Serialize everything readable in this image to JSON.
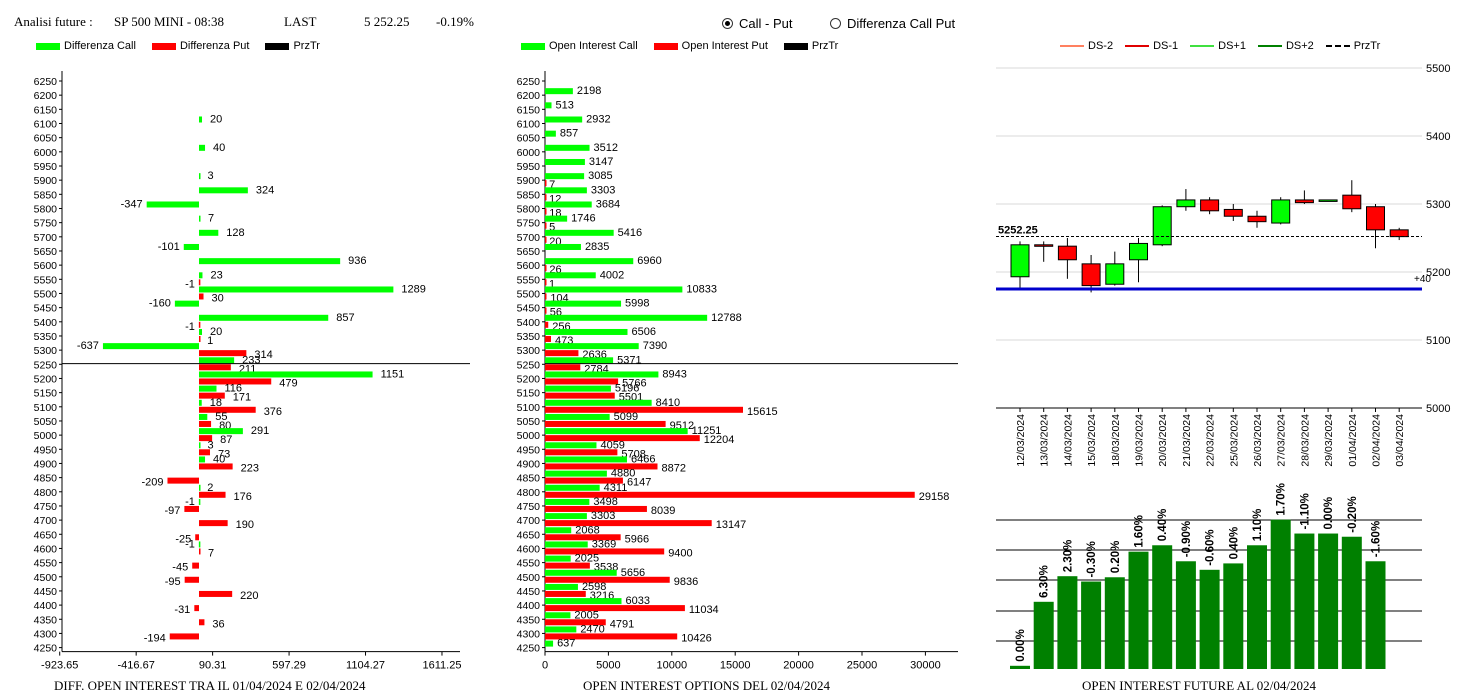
{
  "header": {
    "analysis_label": "Analisi future :",
    "instrument": "SP 500 MINI - 08:38",
    "last_label": "LAST",
    "last_value": "5 252.25",
    "change": "-0.19%"
  },
  "radios": [
    {
      "label": "Call - Put",
      "selected": true
    },
    {
      "label": "Differenza Call Put",
      "selected": false
    }
  ],
  "colors": {
    "green": "#00ff00",
    "red": "#ff0000",
    "dark_green": "#008000",
    "blue": "#0000cc",
    "black": "#000000"
  },
  "captions": {
    "left": "DIFF. OPEN INTEREST TRA IL 01/04/2024 E 02/04/2024",
    "middle": "OPEN INTEREST OPTIONS DEL 02/04/2024",
    "right": "OPEN INTEREST FUTURE AL 02/04/2024"
  },
  "chart_data": [
    {
      "type": "bar",
      "orientation": "horizontal",
      "legend": [
        "Differenza Call",
        "Differenza Put",
        "PrzTr"
      ],
      "legend_placement": "top",
      "categories": [
        6250,
        6200,
        6150,
        6100,
        6050,
        6000,
        5950,
        5900,
        5850,
        5800,
        5750,
        5700,
        5650,
        5600,
        5550,
        5500,
        5450,
        5400,
        5350,
        5300,
        5250,
        5200,
        5150,
        5100,
        5050,
        5000,
        4950,
        4900,
        4850,
        4800,
        4750,
        4700,
        4650,
        4600,
        4550,
        4500,
        4450,
        4400,
        4350,
        4300,
        4250
      ],
      "series": [
        {
          "name": "Differenza Call",
          "values": [
            null,
            null,
            null,
            20,
            null,
            40,
            null,
            3,
            324,
            -347,
            7,
            128,
            -101,
            936,
            23,
            1289,
            -160,
            857,
            20,
            -637,
            233,
            1151,
            116,
            18,
            55,
            291,
            3,
            40,
            null,
            2,
            -1,
            null,
            null,
            -1,
            null,
            null,
            null,
            null,
            null,
            null,
            null
          ]
        },
        {
          "name": "Differenza Put",
          "values": [
            null,
            null,
            null,
            null,
            null,
            null,
            null,
            null,
            null,
            null,
            null,
            null,
            null,
            null,
            -1,
            30,
            null,
            -1,
            1,
            314,
            211,
            479,
            171,
            376,
            80,
            87,
            73,
            223,
            -209,
            176,
            -97,
            190,
            -25,
            7,
            -45,
            -95,
            220,
            -31,
            36,
            -194,
            null
          ]
        }
      ],
      "prztr_level": 5252.25,
      "xticks": [
        "-923.65",
        "-416.67",
        "90.31",
        "597.29",
        "1104.27",
        "1611.25"
      ],
      "xlim": [
        -923.65,
        1611.25
      ]
    },
    {
      "type": "bar",
      "orientation": "horizontal",
      "legend": [
        "Open Interest Call",
        "Open Interest Put",
        "PrzTr"
      ],
      "legend_placement": "top",
      "categories": [
        6250,
        6200,
        6150,
        6100,
        6050,
        6000,
        5950,
        5900,
        5850,
        5800,
        5750,
        5700,
        5650,
        5600,
        5550,
        5500,
        5450,
        5400,
        5350,
        5300,
        5250,
        5200,
        5150,
        5100,
        5050,
        5000,
        4950,
        4900,
        4850,
        4800,
        4750,
        4700,
        4650,
        4600,
        4550,
        4500,
        4450,
        4400,
        4350,
        4300,
        4250
      ],
      "series": [
        {
          "name": "Open Interest Call",
          "values": [
            null,
            2198,
            513,
            2932,
            857,
            3512,
            3147,
            3085,
            3303,
            3684,
            1746,
            5416,
            2835,
            6960,
            4002,
            10833,
            5998,
            12788,
            6506,
            7390,
            5371,
            8943,
            5196,
            8410,
            5099,
            11251,
            4059,
            6466,
            4880,
            4311,
            3498,
            3303,
            2068,
            3369,
            2025,
            5656,
            2598,
            6033,
            2005,
            2470,
            637
          ]
        },
        {
          "name": "Open Interest Put",
          "values": [
            null,
            null,
            null,
            null,
            null,
            null,
            null,
            7,
            12,
            18,
            5,
            20,
            null,
            26,
            1,
            104,
            56,
            256,
            473,
            2636,
            2784,
            5766,
            5501,
            15615,
            9512,
            12204,
            5708,
            8872,
            6147,
            29158,
            8039,
            13147,
            5966,
            9400,
            3538,
            9836,
            3216,
            11034,
            4791,
            10426,
            null
          ]
        }
      ],
      "prztr_level": 5252.25,
      "xticks": [
        "0",
        "5000",
        "10000",
        "15000",
        "20000",
        "25000",
        "30000"
      ],
      "xlim": [
        0,
        31500
      ]
    },
    {
      "type": "candlestick",
      "legend": [
        "DS-2",
        "DS-1",
        "DS+1",
        "DS+2",
        "PrzTr"
      ],
      "legend_placement": "top",
      "x": [
        "12/03/2024",
        "13/03/2024",
        "14/03/2024",
        "15/03/2024",
        "18/03/2024",
        "19/03/2024",
        "20/03/2024",
        "21/03/2024",
        "22/03/2024",
        "25/03/2024",
        "26/03/2024",
        "27/03/2024",
        "28/03/2024",
        "29/03/2024",
        "01/04/2024",
        "02/04/2024",
        "03/04/2024"
      ],
      "candles": [
        {
          "open": 5193,
          "close": 5240,
          "high": 5245,
          "low": 5175
        },
        {
          "open": 5240,
          "close": 5238,
          "high": 5245,
          "low": 5215
        },
        {
          "open": 5238,
          "close": 5218,
          "high": 5250,
          "low": 5190
        },
        {
          "open": 5212,
          "close": 5180,
          "high": 5225,
          "low": 5170
        },
        {
          "open": 5182,
          "close": 5212,
          "high": 5230,
          "low": 5180
        },
        {
          "open": 5218,
          "close": 5242,
          "high": 5250,
          "low": 5185
        },
        {
          "open": 5240,
          "close": 5296,
          "high": 5298,
          "low": 5238
        },
        {
          "open": 5296,
          "close": 5306,
          "high": 5322,
          "low": 5290
        },
        {
          "open": 5306,
          "close": 5290,
          "high": 5310,
          "low": 5285
        },
        {
          "open": 5292,
          "close": 5282,
          "high": 5300,
          "low": 5275
        },
        {
          "open": 5282,
          "close": 5274,
          "high": 5290,
          "low": 5265
        },
        {
          "open": 5272,
          "close": 5306,
          "high": 5310,
          "low": 5270
        },
        {
          "open": 5306,
          "close": 5302,
          "high": 5320,
          "low": 5300
        },
        {
          "open": 5306,
          "close": 5306,
          "high": 5306,
          "low": 5306
        },
        {
          "open": 5313,
          "close": 5293,
          "high": 5335,
          "low": 5288
        },
        {
          "open": 5296,
          "close": 5262,
          "high": 5300,
          "low": 5235
        },
        {
          "open": 5262,
          "close": 5252,
          "high": 5265,
          "low": 5247
        }
      ],
      "prztr_level": 5252.25,
      "prztr_label": "5252.25",
      "blue_level": 5175,
      "blue_label": "+40",
      "yticks": [
        5000,
        5100,
        5200,
        5300,
        5400,
        5500
      ],
      "ylim": [
        5000,
        5500
      ]
    },
    {
      "type": "bar",
      "x": [
        "12/03/2024",
        "13/03/2024",
        "14/03/2024",
        "15/03/2024",
        "18/03/2024",
        "19/03/2024",
        "20/03/2024",
        "21/03/2024",
        "22/03/2024",
        "25/03/2024",
        "26/03/2024",
        "27/03/2024",
        "28/03/2024",
        "29/03/2024",
        "01/04/2024",
        "02/04/2024",
        "03/04/2024"
      ],
      "values": [
        3,
        63,
        87,
        82,
        86,
        110,
        116,
        101,
        93,
        99,
        116,
        140,
        127,
        127,
        124,
        101
      ],
      "labels": [
        "0.00%",
        "6.30%",
        "2.30%",
        "-0.30%",
        "0.20%",
        "1.60%",
        "0.40%",
        "-0.90%",
        "-0.60%",
        "0.40%",
        "1.10%",
        "1.70%",
        "-1.10%",
        "0.00%",
        "-0.20%",
        "-1.60%"
      ]
    }
  ]
}
